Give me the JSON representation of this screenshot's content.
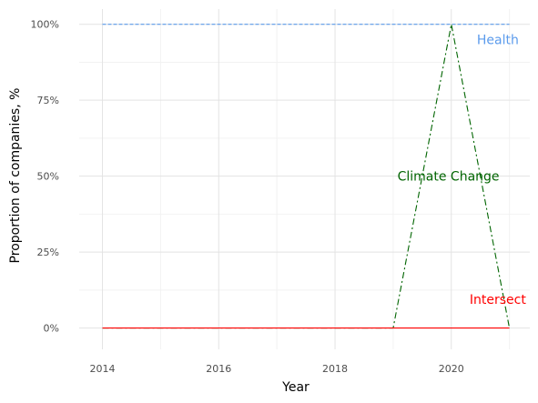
{
  "chart_data": {
    "type": "line",
    "title": "",
    "xlabel": "Year",
    "ylabel": "Proportion of companies, %",
    "xlim": [
      2013.6,
      2021.35
    ],
    "ylim": [
      -7,
      105
    ],
    "x_ticks": [
      2014,
      2016,
      2018,
      2020
    ],
    "x_tick_labels": [
      "2014",
      "2016",
      "2018",
      "2020"
    ],
    "y_ticks": [
      0,
      25,
      50,
      75,
      100
    ],
    "y_tick_labels": [
      "0%",
      "25%",
      "50%",
      "75%",
      "100%"
    ],
    "grid": true,
    "legend": "none",
    "x": [
      2014,
      2015,
      2016,
      2017,
      2018,
      2019,
      2020,
      2021
    ],
    "series": [
      {
        "name": "Health",
        "values": [
          100,
          100,
          100,
          100,
          100,
          100,
          100,
          100
        ],
        "color": "#5b9bec",
        "dash": "dashed",
        "label_at": [
          2020.8,
          95
        ]
      },
      {
        "name": "Climate Change",
        "values": [
          0,
          0,
          0,
          0,
          0,
          0,
          100,
          0
        ],
        "color": "#006400",
        "dash": "dashdot",
        "label_at": [
          2019.95,
          50
        ]
      },
      {
        "name": "Intersect",
        "values": [
          0,
          0,
          0,
          0,
          0,
          0,
          0,
          0
        ],
        "color": "#ff0000",
        "dash": "solid",
        "label_at": [
          2020.8,
          9.5
        ]
      }
    ]
  }
}
